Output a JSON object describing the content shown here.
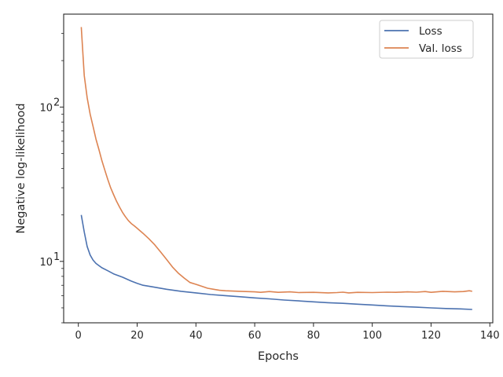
{
  "chart_data": {
    "type": "line",
    "xlabel": "Epochs",
    "ylabel": "Negative log-likelihood",
    "xlim": [
      -5,
      141
    ],
    "ylim": [
      4,
      400
    ],
    "yscale": "log",
    "x_ticks": [
      0,
      20,
      40,
      60,
      80,
      100,
      120,
      140
    ],
    "x_tick_labels": [
      "0",
      "20",
      "40",
      "60",
      "80",
      "100",
      "120",
      "140"
    ],
    "y_major_ticks": [
      10,
      100
    ],
    "y_tick_labels": [
      "10",
      "10"
    ],
    "y_tick_superscripts": [
      "1",
      "2"
    ],
    "y_minor_ticks": [
      4,
      5,
      6,
      7,
      8,
      9,
      20,
      30,
      40,
      50,
      60,
      70,
      80,
      90,
      200,
      300
    ],
    "grid": false,
    "legend_position": "top-right",
    "colors": {
      "Loss": "#4c72b0",
      "Val. loss": "#dd8452",
      "axis": "#262626"
    },
    "series": [
      {
        "name": "Loss",
        "points": [
          [
            1,
            20
          ],
          [
            2,
            15.5
          ],
          [
            3,
            12.5
          ],
          [
            4,
            11
          ],
          [
            5,
            10.2
          ],
          [
            6,
            9.7
          ],
          [
            8,
            9.1
          ],
          [
            10,
            8.7
          ],
          [
            12,
            8.3
          ],
          [
            15,
            7.9
          ],
          [
            18,
            7.45
          ],
          [
            20,
            7.2
          ],
          [
            22,
            7.0
          ],
          [
            25,
            6.85
          ],
          [
            30,
            6.6
          ],
          [
            35,
            6.4
          ],
          [
            40,
            6.25
          ],
          [
            45,
            6.1
          ],
          [
            50,
            6.0
          ],
          [
            55,
            5.9
          ],
          [
            60,
            5.8
          ],
          [
            65,
            5.72
          ],
          [
            70,
            5.62
          ],
          [
            75,
            5.55
          ],
          [
            80,
            5.47
          ],
          [
            85,
            5.4
          ],
          [
            90,
            5.35
          ],
          [
            95,
            5.28
          ],
          [
            100,
            5.22
          ],
          [
            105,
            5.15
          ],
          [
            110,
            5.1
          ],
          [
            115,
            5.05
          ],
          [
            120,
            5.0
          ],
          [
            125,
            4.95
          ],
          [
            130,
            4.92
          ],
          [
            134,
            4.88
          ]
        ]
      },
      {
        "name": "Val. loss",
        "points": [
          [
            1,
            330
          ],
          [
            2,
            160
          ],
          [
            3,
            115
          ],
          [
            4,
            90
          ],
          [
            5,
            75
          ],
          [
            6,
            62
          ],
          [
            7,
            53
          ],
          [
            8,
            45
          ],
          [
            9,
            39
          ],
          [
            10,
            34
          ],
          [
            11,
            30
          ],
          [
            12,
            27
          ],
          [
            13,
            24.5
          ],
          [
            14,
            22.5
          ],
          [
            15,
            20.8
          ],
          [
            16,
            19.5
          ],
          [
            17,
            18.4
          ],
          [
            18,
            17.6
          ],
          [
            19,
            17
          ],
          [
            20,
            16.4
          ],
          [
            22,
            15.2
          ],
          [
            24,
            14
          ],
          [
            26,
            12.8
          ],
          [
            28,
            11.5
          ],
          [
            30,
            10.3
          ],
          [
            32,
            9.2
          ],
          [
            34,
            8.4
          ],
          [
            36,
            7.8
          ],
          [
            38,
            7.3
          ],
          [
            40,
            7.1
          ],
          [
            42,
            6.9
          ],
          [
            44,
            6.7
          ],
          [
            46,
            6.6
          ],
          [
            48,
            6.5
          ],
          [
            50,
            6.45
          ],
          [
            55,
            6.4
          ],
          [
            60,
            6.35
          ],
          [
            62,
            6.3
          ],
          [
            65,
            6.38
          ],
          [
            68,
            6.3
          ],
          [
            72,
            6.35
          ],
          [
            75,
            6.28
          ],
          [
            80,
            6.3
          ],
          [
            85,
            6.25
          ],
          [
            88,
            6.28
          ],
          [
            90,
            6.32
          ],
          [
            92,
            6.25
          ],
          [
            95,
            6.3
          ],
          [
            100,
            6.28
          ],
          [
            105,
            6.32
          ],
          [
            108,
            6.3
          ],
          [
            112,
            6.35
          ],
          [
            115,
            6.32
          ],
          [
            118,
            6.38
          ],
          [
            120,
            6.3
          ],
          [
            124,
            6.4
          ],
          [
            128,
            6.35
          ],
          [
            131,
            6.38
          ],
          [
            133,
            6.45
          ],
          [
            134,
            6.4
          ]
        ]
      }
    ]
  }
}
